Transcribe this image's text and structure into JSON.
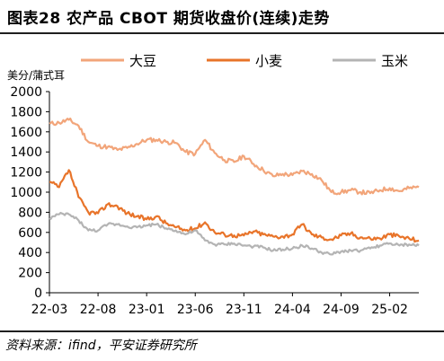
{
  "header": {
    "title": "图表28    农产品 CBOT 期货收盘价(连续)走势"
  },
  "footer": {
    "source": "资料来源：ifind，平安证券研究所"
  },
  "colors": {
    "soy": "#F2A57A",
    "wheat": "#E8742A",
    "corn": "#B4B4B4",
    "axis": "#000000"
  },
  "chart_data": {
    "type": "line",
    "ylabel": "美分/蒲式耳",
    "ylim": [
      0,
      2000
    ],
    "yticks": [
      0,
      200,
      400,
      600,
      800,
      1000,
      1200,
      1400,
      1600,
      1800,
      2000
    ],
    "x_ticks": [
      "22-03",
      "22-08",
      "23-01",
      "23-06",
      "23-11",
      "24-04",
      "24-09",
      "25-02"
    ],
    "x_range": [
      "2022-03",
      "2025-05"
    ],
    "grid": false,
    "legend_position": "top",
    "series": [
      {
        "name": "大豆",
        "color": "#F2A57A",
        "x": [
          "2022-03",
          "2022-04",
          "2022-05",
          "2022-06",
          "2022-07",
          "2022-08",
          "2022-09",
          "2022-10",
          "2022-11",
          "2022-12",
          "2023-01",
          "2023-02",
          "2023-03",
          "2023-04",
          "2023-05",
          "2023-06",
          "2023-07",
          "2023-08",
          "2023-09",
          "2023-10",
          "2023-11",
          "2023-12",
          "2024-01",
          "2024-02",
          "2024-03",
          "2024-04",
          "2024-05",
          "2024-06",
          "2024-07",
          "2024-08",
          "2024-09",
          "2024-10",
          "2024-11",
          "2024-12",
          "2025-01",
          "2025-02",
          "2025-03",
          "2025-04",
          "2025-05"
        ],
        "values": [
          1680,
          1690,
          1720,
          1660,
          1500,
          1460,
          1450,
          1420,
          1440,
          1480,
          1520,
          1520,
          1500,
          1490,
          1400,
          1380,
          1520,
          1390,
          1320,
          1300,
          1360,
          1280,
          1220,
          1160,
          1180,
          1170,
          1210,
          1180,
          1120,
          1000,
          1000,
          1020,
          1000,
          990,
          1020,
          1040,
          1010,
          1040,
          1050
        ]
      },
      {
        "name": "小麦",
        "color": "#E8742A",
        "x": [
          "2022-03",
          "2022-04",
          "2022-05",
          "2022-06",
          "2022-07",
          "2022-08",
          "2022-09",
          "2022-10",
          "2022-11",
          "2022-12",
          "2023-01",
          "2023-02",
          "2023-03",
          "2023-04",
          "2023-05",
          "2023-06",
          "2023-07",
          "2023-08",
          "2023-09",
          "2023-10",
          "2023-11",
          "2023-12",
          "2024-01",
          "2024-02",
          "2024-03",
          "2024-04",
          "2024-05",
          "2024-06",
          "2024-07",
          "2024-08",
          "2024-09",
          "2024-10",
          "2024-11",
          "2024-12",
          "2025-01",
          "2025-02",
          "2025-03",
          "2025-04",
          "2025-05"
        ],
        "values": [
          1100,
          1050,
          1220,
          950,
          800,
          790,
          880,
          860,
          790,
          760,
          730,
          760,
          690,
          650,
          620,
          640,
          700,
          600,
          580,
          570,
          570,
          610,
          580,
          560,
          560,
          580,
          680,
          580,
          550,
          530,
          570,
          590,
          550,
          540,
          540,
          580,
          560,
          540,
          520
        ]
      },
      {
        "name": "玉米",
        "color": "#B4B4B4",
        "x": [
          "2022-03",
          "2022-04",
          "2022-05",
          "2022-06",
          "2022-07",
          "2022-08",
          "2022-09",
          "2022-10",
          "2022-11",
          "2022-12",
          "2023-01",
          "2023-02",
          "2023-03",
          "2023-04",
          "2023-05",
          "2023-06",
          "2023-07",
          "2023-08",
          "2023-09",
          "2023-10",
          "2023-11",
          "2023-12",
          "2024-01",
          "2024-02",
          "2024-03",
          "2024-04",
          "2024-05",
          "2024-06",
          "2024-07",
          "2024-08",
          "2024-09",
          "2024-10",
          "2024-11",
          "2024-12",
          "2025-01",
          "2025-02",
          "2025-03",
          "2025-04",
          "2025-05"
        ],
        "values": [
          740,
          780,
          780,
          720,
          620,
          620,
          680,
          680,
          660,
          650,
          670,
          680,
          640,
          620,
          580,
          620,
          520,
          480,
          480,
          490,
          470,
          460,
          450,
          420,
          430,
          440,
          470,
          440,
          400,
          380,
          410,
          420,
          420,
          440,
          470,
          490,
          470,
          480,
          470
        ]
      }
    ]
  }
}
